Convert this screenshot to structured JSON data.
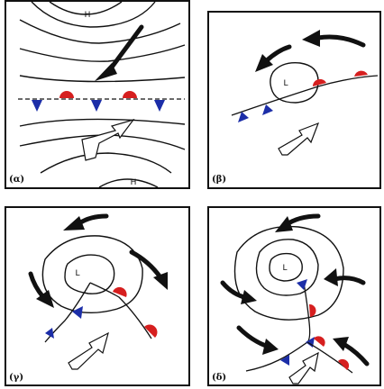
{
  "panels": [
    {
      "label": "(α)",
      "pressure_labels": [
        "H",
        "H"
      ]
    },
    {
      "label": "(β)",
      "pressure_labels": [
        "L"
      ]
    },
    {
      "label": "(γ)",
      "pressure_labels": [
        "L"
      ]
    },
    {
      "label": "(δ)",
      "pressure_labels": [
        "L"
      ]
    }
  ],
  "colors": {
    "cold_front": "#1c2ea8",
    "warm_front": "#d61f1f",
    "line": "#111111",
    "background": "#ffffff"
  }
}
